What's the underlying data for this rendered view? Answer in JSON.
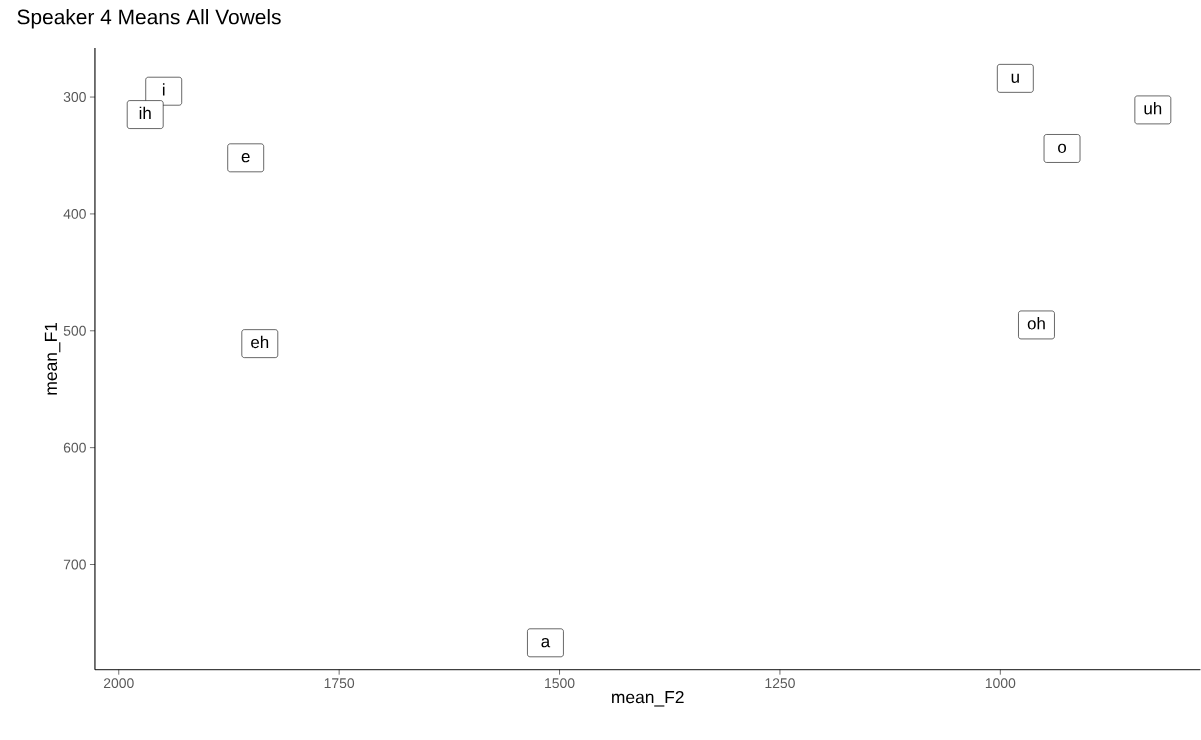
{
  "chart_data": {
    "type": "scatter",
    "title": "Speaker 4 Means All Vowels",
    "xlabel": "mean_F2",
    "ylabel": "mean_F1",
    "x": [
      1949,
      1970,
      1856,
      1840,
      1516,
      983,
      827,
      930,
      959
    ],
    "values": [
      295,
      315,
      352,
      511,
      767,
      284,
      311,
      344,
      495
    ],
    "value_labels": [
      "i",
      "ih",
      "e",
      "eh",
      "a",
      "u",
      "uh",
      "o",
      "oh"
    ],
    "marker": "square",
    "xlim": [
      2027,
      773
    ],
    "ylim": [
      790,
      258
    ],
    "xticks": [
      2000,
      1750,
      1500,
      1250,
      1000
    ],
    "yticks": [
      300,
      400,
      500,
      600,
      700
    ],
    "grid": false
  }
}
